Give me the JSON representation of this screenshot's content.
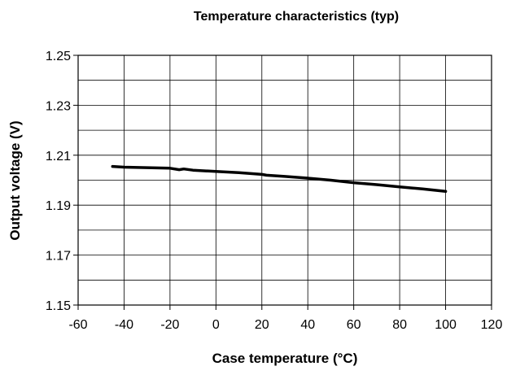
{
  "chart_data": {
    "type": "line",
    "title": "Temperature characteristics (typ)",
    "xlabel": "Case temperature (°C)",
    "ylabel": "Output voltage (V)",
    "xlim": [
      -60,
      120
    ],
    "ylim": [
      1.15,
      1.25
    ],
    "x_ticks": [
      "-60",
      "-40",
      "-20",
      "0",
      "20",
      "40",
      "60",
      "80",
      "100",
      "120"
    ],
    "y_ticks": [
      "1.15",
      "1.17",
      "1.19",
      "1.21",
      "1.23",
      "1.25"
    ],
    "grid": true,
    "legend": "none",
    "series": [
      {
        "color": "#000000",
        "x": [
          -45,
          -40,
          -30,
          -20,
          -16,
          -14,
          -10,
          0,
          10,
          20,
          22,
          30,
          40,
          50,
          60,
          70,
          80,
          90,
          100
        ],
        "y": [
          1.2055,
          1.2052,
          1.205,
          1.2048,
          1.2042,
          1.2045,
          1.204,
          1.2035,
          1.203,
          1.2023,
          1.202,
          1.2015,
          1.2008,
          1.2,
          1.199,
          1.1982,
          1.1973,
          1.1965,
          1.1955
        ]
      }
    ]
  }
}
